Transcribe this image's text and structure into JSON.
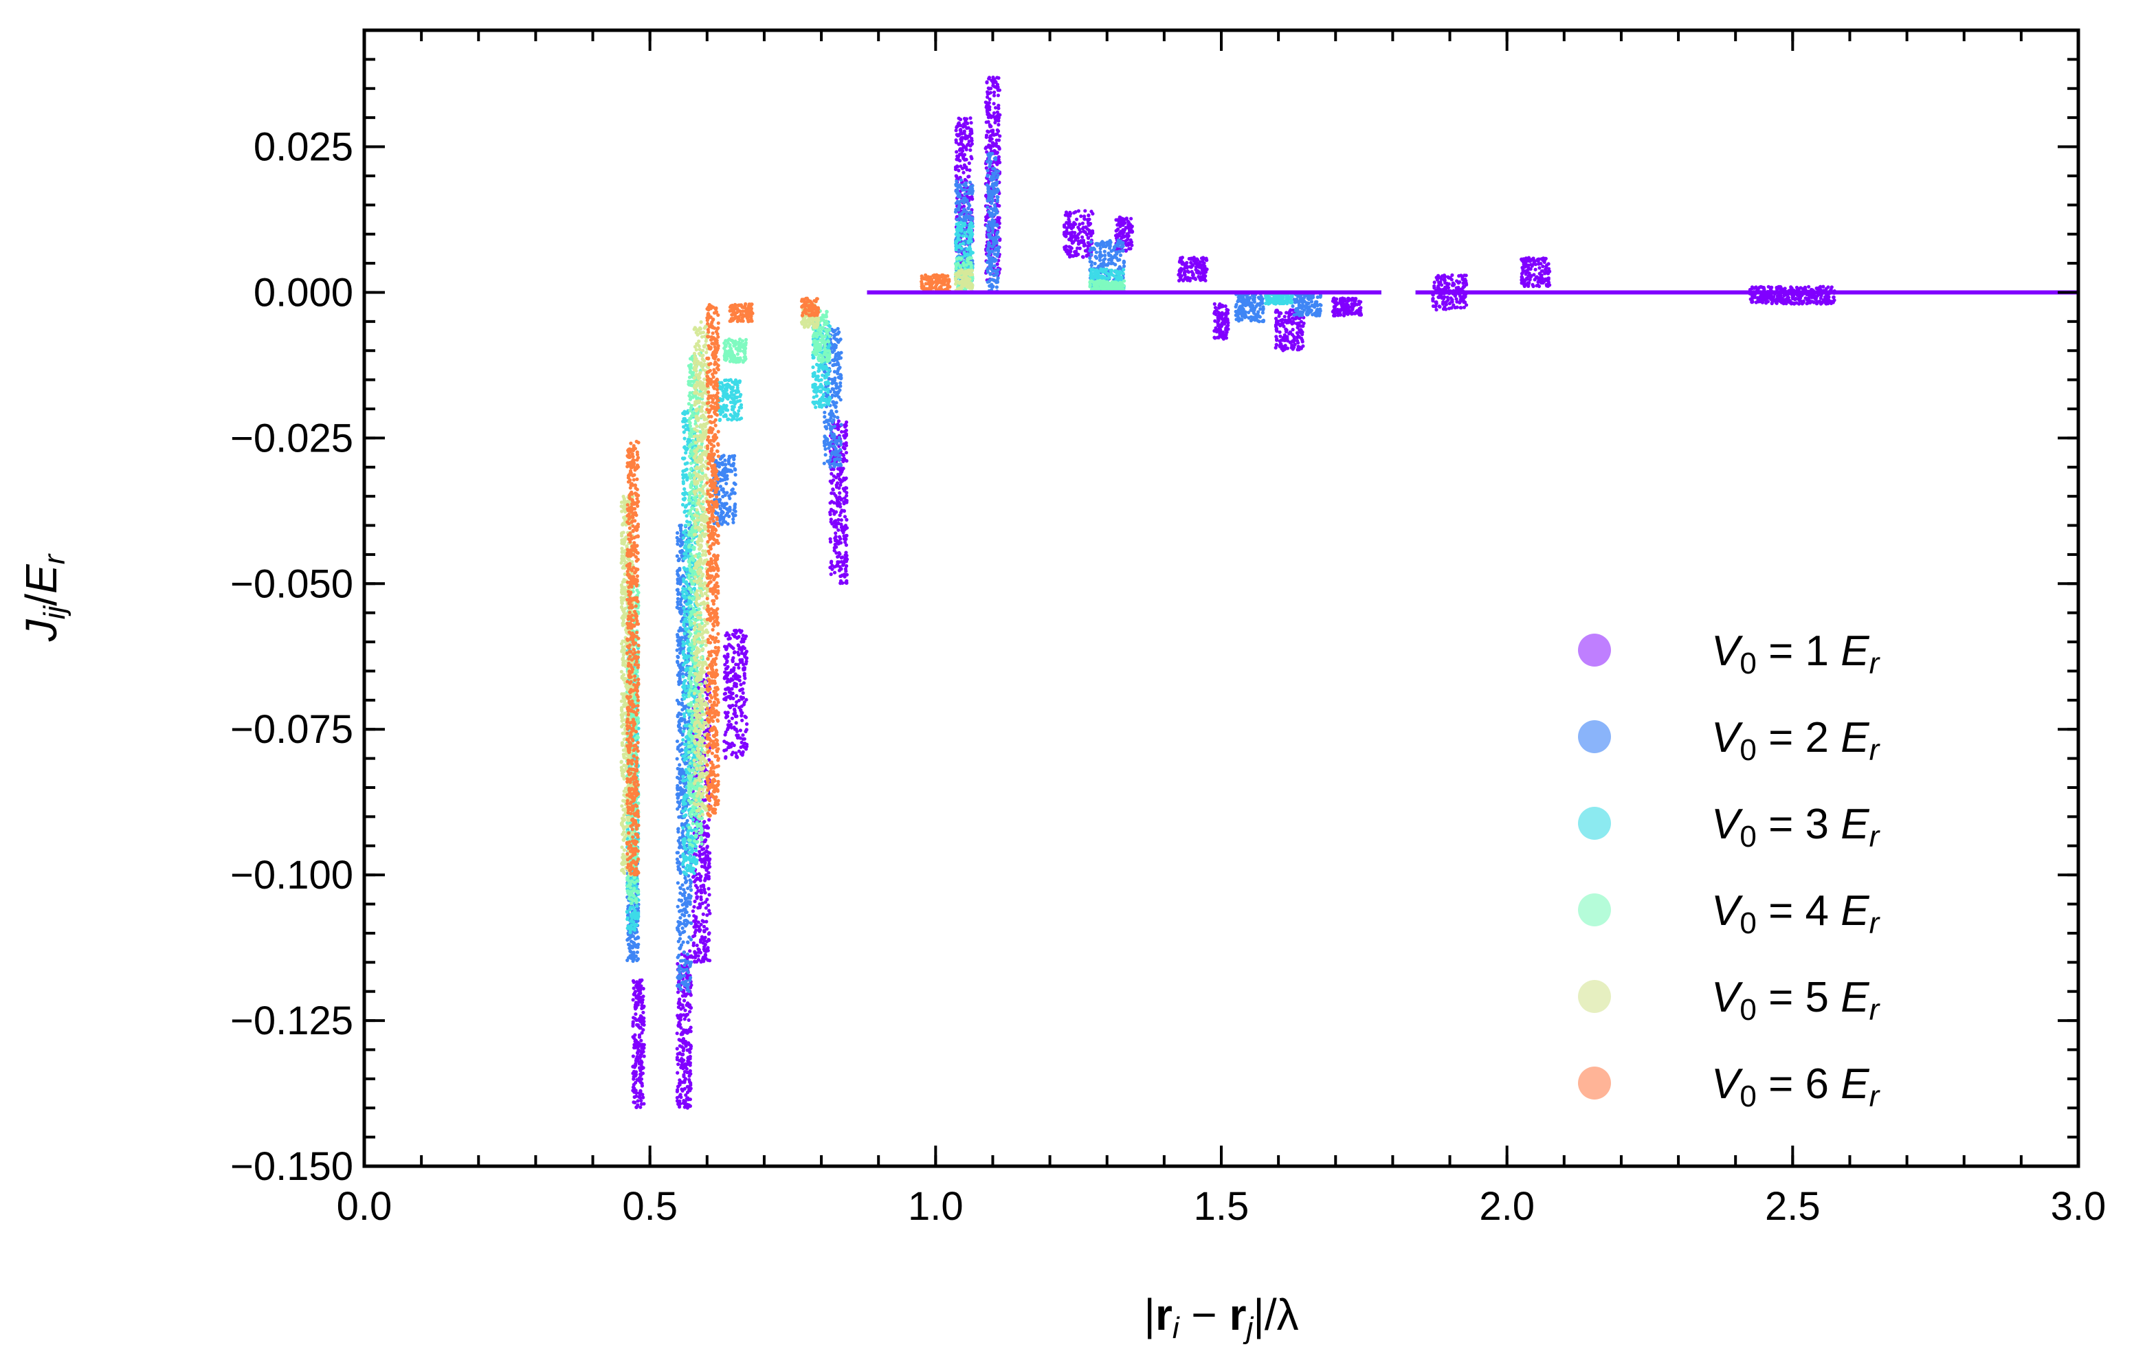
{
  "chart_data": {
    "type": "scatter",
    "title": "",
    "xlabel": "|r_i − r_j|/λ",
    "ylabel": "J_ij/E_r",
    "xlim": [
      0.0,
      3.0
    ],
    "ylim": [
      -0.15,
      0.045
    ],
    "x_ticks": [
      0.0,
      0.5,
      1.0,
      1.5,
      2.0,
      2.5,
      3.0
    ],
    "x_tick_labels": [
      "0.0",
      "0.5",
      "1.0",
      "1.5",
      "2.0",
      "2.5",
      "3.0"
    ],
    "y_ticks": [
      0.025,
      0.0,
      -0.025,
      -0.05,
      -0.075,
      -0.1,
      -0.125,
      -0.15
    ],
    "y_tick_labels": [
      "0.025",
      "0.000",
      "−0.025",
      "−0.050",
      "−0.075",
      "−0.100",
      "−0.125",
      "−0.150"
    ],
    "grid": false,
    "legend_position": "lower-right",
    "legend_eq": "=",
    "legend_unit": "E",
    "legend_unit_sub": "r",
    "series": [
      {
        "name": "V_0 = 1 E_r",
        "V0": 1,
        "color": "#8000ff",
        "legend_color": "#bf7fff",
        "bands": [
          [
            0.48,
            -0.14,
            -0.118,
            0.02
          ],
          [
            0.56,
            -0.14,
            -0.113,
            0.025
          ],
          [
            0.59,
            -0.115,
            -0.065,
            0.03
          ],
          [
            0.65,
            -0.08,
            -0.058,
            0.04
          ],
          [
            0.83,
            -0.05,
            -0.022,
            0.03
          ],
          [
            1.05,
            0.004,
            0.03,
            0.03
          ],
          [
            1.1,
            0.002,
            0.037,
            0.025
          ],
          [
            1.25,
            0.006,
            0.014,
            0.05
          ],
          [
            1.33,
            0.007,
            0.013,
            0.03
          ],
          [
            1.45,
            0.002,
            0.006,
            0.05
          ],
          [
            1.5,
            -0.008,
            -0.002,
            0.025
          ],
          [
            1.62,
            -0.01,
            -0.003,
            0.05
          ],
          [
            1.72,
            -0.004,
            -0.001,
            0.05
          ],
          [
            1.9,
            -0.003,
            0.003,
            0.06
          ],
          [
            2.05,
            0.001,
            0.006,
            0.05
          ],
          [
            2.5,
            -0.002,
            0.001,
            0.15
          ]
        ]
      },
      {
        "name": "V_0 = 2 E_r",
        "V0": 2,
        "color": "#3f86f5",
        "legend_color": "#8ab4fa",
        "bands": [
          [
            0.47,
            -0.115,
            -0.095,
            0.02
          ],
          [
            0.56,
            -0.12,
            -0.04,
            0.025
          ],
          [
            0.63,
            -0.04,
            -0.028,
            0.04
          ],
          [
            0.82,
            -0.03,
            -0.006,
            0.03
          ],
          [
            1.05,
            0.002,
            0.02,
            0.03
          ],
          [
            1.1,
            0.0,
            0.024,
            0.02
          ],
          [
            1.3,
            0.001,
            0.009,
            0.06
          ],
          [
            1.55,
            -0.005,
            0.0,
            0.05
          ],
          [
            1.65,
            -0.004,
            0.0,
            0.05
          ]
        ]
      },
      {
        "name": "V_0 = 3 E_r",
        "V0": 3,
        "color": "#3ddbe8",
        "legend_color": "#8ceaf0",
        "bands": [
          [
            0.47,
            -0.11,
            -0.06,
            0.02
          ],
          [
            0.57,
            -0.1,
            -0.02,
            0.025
          ],
          [
            0.64,
            -0.022,
            -0.015,
            0.04
          ],
          [
            0.8,
            -0.02,
            -0.005,
            0.03
          ],
          [
            1.05,
            0.001,
            0.012,
            0.03
          ],
          [
            1.3,
            0.0,
            0.004,
            0.06
          ],
          [
            1.6,
            -0.002,
            0.0,
            0.05
          ]
        ]
      },
      {
        "name": "V_0 = 4 E_r",
        "V0": 4,
        "color": "#7ffac0",
        "legend_color": "#b5fcd9",
        "bands": [
          [
            0.47,
            -0.105,
            -0.05,
            0.02
          ],
          [
            0.58,
            -0.095,
            -0.01,
            0.025
          ],
          [
            0.65,
            -0.012,
            -0.008,
            0.04
          ],
          [
            0.8,
            -0.012,
            -0.003,
            0.03
          ],
          [
            1.05,
            0.0,
            0.006,
            0.03
          ],
          [
            1.3,
            0.0,
            0.002,
            0.06
          ]
        ]
      },
      {
        "name": "V_0 = 5 E_r",
        "V0": 5,
        "color": "#d6e99a",
        "legend_color": "#e6efc0",
        "bands": [
          [
            0.46,
            -0.1,
            -0.035,
            0.02
          ],
          [
            0.59,
            -0.09,
            -0.005,
            0.025
          ],
          [
            0.78,
            -0.006,
            -0.002,
            0.03
          ],
          [
            1.05,
            0.0,
            0.004,
            0.03
          ]
        ]
      },
      {
        "name": "V_0 = 6 E_r",
        "V0": 6,
        "color": "#ff8040",
        "legend_color": "#ffb497",
        "bands": [
          [
            0.47,
            -0.1,
            -0.025,
            0.02
          ],
          [
            0.61,
            -0.09,
            -0.002,
            0.02
          ],
          [
            0.66,
            -0.005,
            -0.002,
            0.04
          ],
          [
            0.78,
            -0.004,
            -0.001,
            0.03
          ],
          [
            1.0,
            0.0,
            0.003,
            0.05
          ]
        ]
      }
    ],
    "baseline": {
      "x_from": 0.88,
      "x_to": 3.0,
      "gap_from": 1.78,
      "gap_to": 1.84
    }
  }
}
